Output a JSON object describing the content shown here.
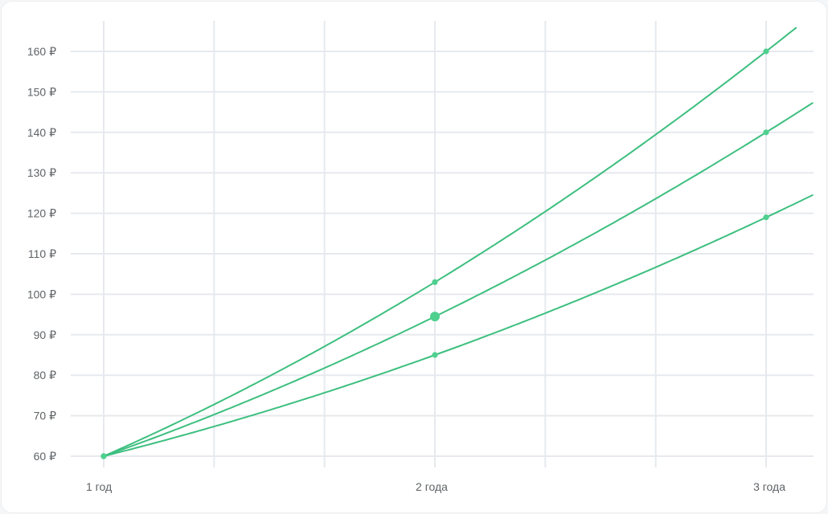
{
  "chart_data": {
    "type": "line",
    "title": "",
    "xlabel": "",
    "ylabel": "",
    "x": [
      1,
      2,
      3
    ],
    "x_tick_labels": [
      "1 год",
      "2 года",
      "3 года"
    ],
    "y_ticks": [
      60,
      70,
      80,
      90,
      100,
      110,
      120,
      130,
      140,
      150,
      160
    ],
    "y_tick_labels": [
      "60 ₽",
      "70 ₽",
      "80 ₽",
      "90 ₽",
      "100 ₽",
      "110 ₽",
      "120 ₽",
      "130 ₽",
      "140 ₽",
      "150 ₽",
      "160 ₽"
    ],
    "ylim": [
      60,
      160
    ],
    "grid": true,
    "series": [
      {
        "values": [
          60,
          103,
          160
        ]
      },
      {
        "values": [
          60,
          94.5,
          140
        ]
      },
      {
        "values": [
          60,
          85,
          119
        ]
      }
    ],
    "highlight": {
      "series": 1,
      "point": 1
    },
    "colors": {
      "line": "#3dbf7f",
      "point": "#4fd08f",
      "grid": "#e6e9ee"
    }
  }
}
